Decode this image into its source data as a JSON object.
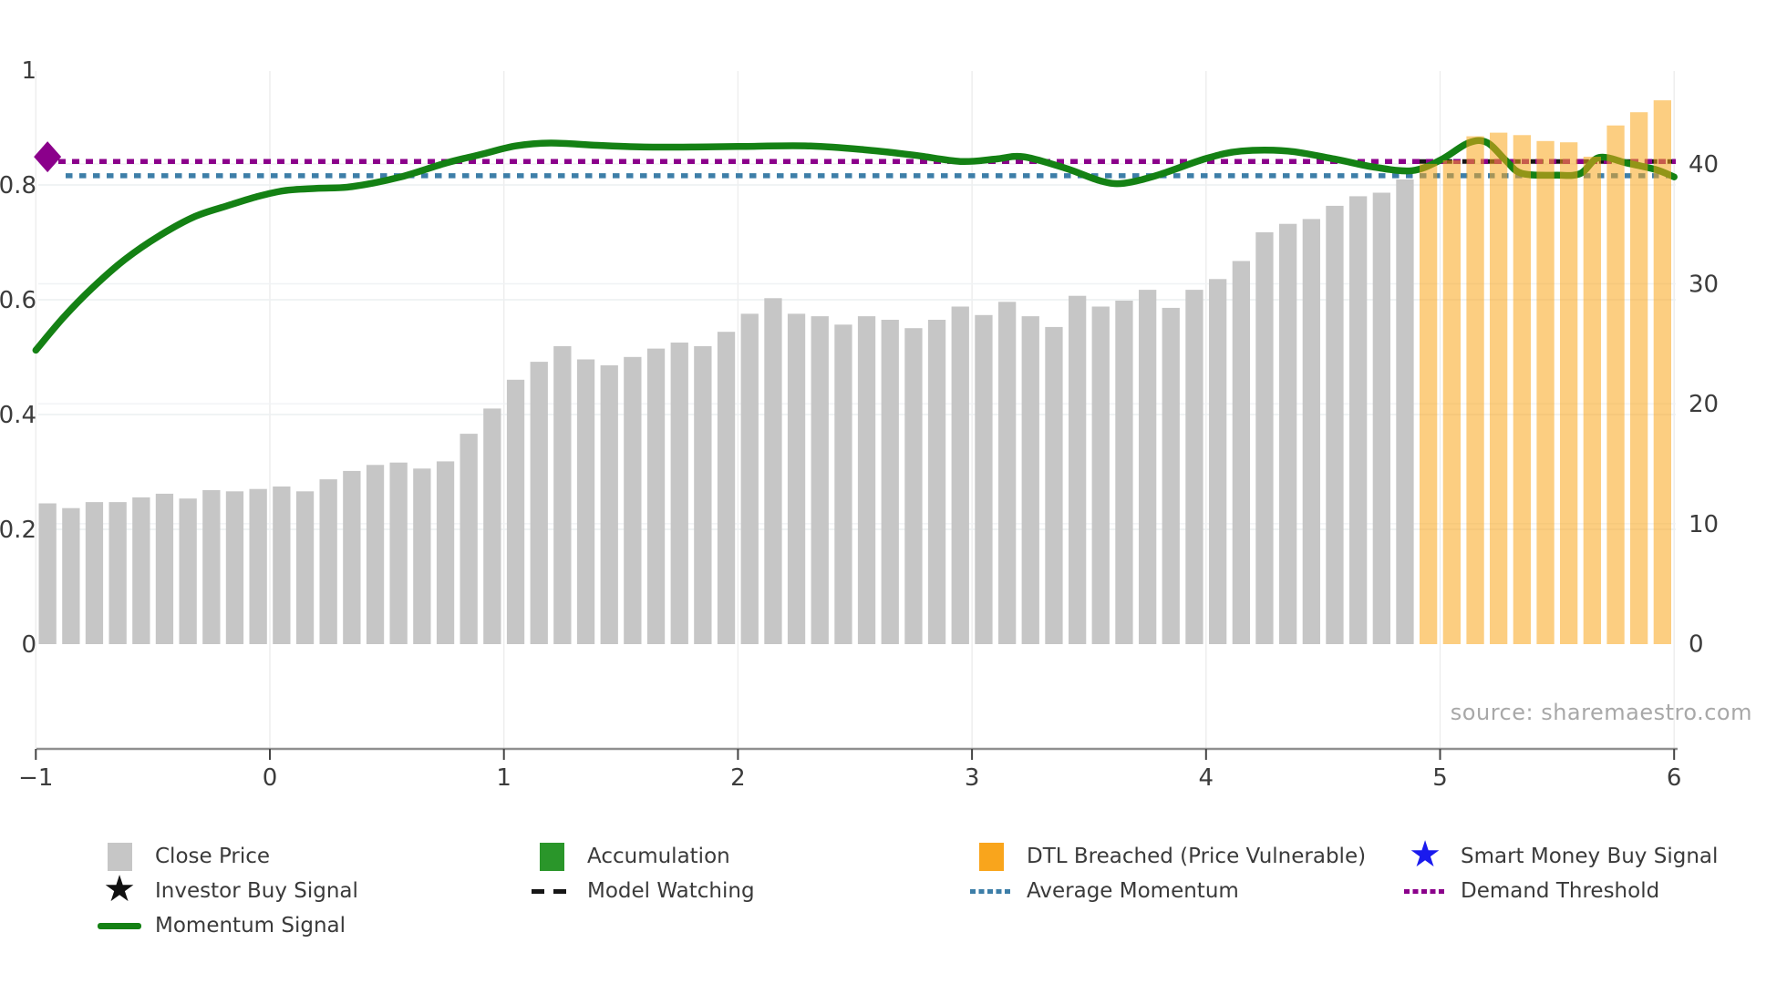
{
  "source_note": "source: sharemaestro.com",
  "colors": {
    "close_price": "#c6c6c6",
    "dtl_bar_overlay": "rgba(249,165,26,0.55)",
    "dtl_legend": "#f9a51c",
    "accumulation": "#2a962a",
    "momentum": "#148114",
    "average_momentum": "#3d7ea8",
    "demand_threshold": "#8b008b",
    "model_watching": "#161616",
    "smart_money_star": "#1a1aee",
    "investor_star": "#111111",
    "axis_text": "#3c3c3c",
    "spine": "#8f8f8f",
    "grid": "#ededed"
  },
  "chart_data": {
    "type": "combo bar + line (dual axis)",
    "title": "",
    "source": "source: sharemaestro.com",
    "x_axis": {
      "tick_labels": [
        "−1",
        "0",
        "1",
        "2",
        "3",
        "4",
        "5",
        "6"
      ],
      "tick_values": [
        -1,
        0,
        1,
        2,
        3,
        4,
        5,
        6
      ],
      "range": [
        -1.02,
        6.02
      ]
    },
    "left_axis": {
      "series": "momentum (0-1)",
      "tick_labels": [
        "0",
        "0.2",
        "0.4",
        "0.6",
        "0.8",
        "1"
      ],
      "tick_values": [
        0,
        0.2,
        0.4,
        0.6,
        0.8,
        1
      ],
      "range": [
        0,
        1
      ]
    },
    "right_axis": {
      "series": "price",
      "tick_labels": [
        "0",
        "10",
        "20",
        "30",
        "40"
      ],
      "tick_values": [
        0,
        10,
        20,
        30,
        40
      ],
      "range": [
        0,
        45.6
      ]
    },
    "bars": {
      "x_start": -0.95,
      "x_step": 0.1,
      "close_price_values": [
        11.7,
        11.3,
        11.8,
        11.8,
        12.2,
        12.5,
        12.1,
        12.8,
        12.7,
        12.9,
        13.1,
        12.7,
        13.7,
        14.4,
        14.9,
        15.1,
        14.6,
        15.2,
        17.5,
        19.6,
        22.0,
        23.5,
        24.8,
        23.7,
        23.2,
        23.9,
        24.6,
        25.1,
        24.8,
        26.0,
        27.5,
        28.8,
        27.5,
        27.3,
        26.6,
        27.3,
        27.0,
        26.3,
        27.0,
        28.1,
        27.4,
        28.5,
        27.3,
        26.4,
        29.0,
        28.1,
        28.6,
        29.5,
        28.0,
        29.5,
        30.4,
        31.9,
        34.3,
        35.0,
        35.4,
        36.5,
        37.3,
        37.6,
        38.7
      ],
      "dtl_breached_values": [
        40.0,
        40.3,
        42.3,
        42.6,
        42.4,
        41.9,
        41.8,
        40.6,
        43.2,
        44.3,
        45.3
      ]
    },
    "momentum_signal": {
      "points": [
        [
          -1.0,
          0.512
        ],
        [
          -0.88,
          0.57
        ],
        [
          -0.76,
          0.62
        ],
        [
          -0.62,
          0.67
        ],
        [
          -0.47,
          0.712
        ],
        [
          -0.32,
          0.745
        ],
        [
          -0.18,
          0.764
        ],
        [
          -0.06,
          0.779
        ],
        [
          0.06,
          0.79
        ],
        [
          0.2,
          0.794
        ],
        [
          0.35,
          0.797
        ],
        [
          0.55,
          0.813
        ],
        [
          0.75,
          0.838
        ],
        [
          0.9,
          0.853
        ],
        [
          1.05,
          0.868
        ],
        [
          1.2,
          0.873
        ],
        [
          1.4,
          0.869
        ],
        [
          1.6,
          0.866
        ],
        [
          1.8,
          0.866
        ],
        [
          2.0,
          0.867
        ],
        [
          2.3,
          0.868
        ],
        [
          2.55,
          0.861
        ],
        [
          2.75,
          0.852
        ],
        [
          2.95,
          0.841
        ],
        [
          3.1,
          0.845
        ],
        [
          3.22,
          0.849
        ],
        [
          3.4,
          0.829
        ],
        [
          3.55,
          0.807
        ],
        [
          3.65,
          0.803
        ],
        [
          3.8,
          0.818
        ],
        [
          4.0,
          0.846
        ],
        [
          4.15,
          0.859
        ],
        [
          4.35,
          0.859
        ],
        [
          4.55,
          0.845
        ],
        [
          4.72,
          0.831
        ],
        [
          4.88,
          0.825
        ],
        [
          5.0,
          0.843
        ],
        [
          5.12,
          0.873
        ],
        [
          5.2,
          0.874
        ],
        [
          5.28,
          0.843
        ],
        [
          5.35,
          0.82
        ],
        [
          5.5,
          0.817
        ],
        [
          5.6,
          0.82
        ],
        [
          5.68,
          0.848
        ],
        [
          5.8,
          0.838
        ],
        [
          5.92,
          0.827
        ],
        [
          6.0,
          0.814
        ]
      ]
    },
    "model_watching": {
      "level": 0.841,
      "x_range": [
        4.9,
        6.0
      ]
    },
    "average_momentum_level": 0.816,
    "demand_threshold_level": 0.841,
    "buy_marker": {
      "shape": "diamond",
      "x": -0.95,
      "y": 0.849
    }
  },
  "legend": {
    "items": [
      {
        "label": "Close Price"
      },
      {
        "label": "Investor Buy Signal"
      },
      {
        "label": "Momentum Signal"
      },
      {
        "label": "Accumulation"
      },
      {
        "label": "Model Watching"
      },
      {
        "label": "DTL Breached (Price Vulnerable)"
      },
      {
        "label": "Average Momentum"
      },
      {
        "label": "Smart Money Buy Signal"
      },
      {
        "label": "Demand Threshold"
      }
    ],
    "star_glyph": "★"
  }
}
